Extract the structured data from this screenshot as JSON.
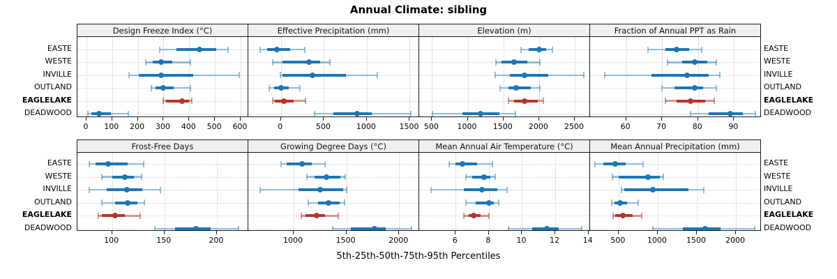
{
  "title": "Annual Climate: sibling",
  "footer": "5th-25th-50th-75th-95th Percentiles",
  "stations": [
    "EASTE",
    "WESTE",
    "INVILLE",
    "OUTLAND",
    "EAGLELAKE",
    "DEADWOOD"
  ],
  "highlight_station": "EAGLELAKE",
  "colors": {
    "series": "#1d76b4",
    "series_light": "rgba(29,118,180,0.45)",
    "highlight": "#b5342d",
    "highlight_light": "rgba(181,52,45,0.5)",
    "strip_bg": "#f0f0f0",
    "panel_bg": "#ffffff",
    "grid": "#cccccc",
    "frame": "#1a1a1a"
  },
  "chart_data": {
    "type": "dot-whisker",
    "layout": {
      "rows": 2,
      "cols": 4,
      "grid": true,
      "row_labels_left": true,
      "row_labels_right": true
    },
    "percentiles": [
      5,
      25,
      50,
      75,
      95
    ],
    "categories": [
      "EASTE",
      "WESTE",
      "INVILLE",
      "OUTLAND",
      "EAGLELAKE",
      "DEADWOOD"
    ],
    "highlight_index": 4,
    "panels": [
      {
        "title": "Design Freeze Index (°C)",
        "row": 0,
        "col": 0,
        "xlim": [
          -35,
          630
        ],
        "ticks": [
          0,
          100,
          200,
          300,
          400,
          500,
          600
        ],
        "values": [
          [
            285,
            350,
            440,
            505,
            550
          ],
          [
            230,
            258,
            292,
            335,
            405
          ],
          [
            165,
            205,
            290,
            415,
            595
          ],
          [
            252,
            270,
            298,
            340,
            405
          ],
          [
            298,
            310,
            372,
            400,
            410
          ],
          [
            5,
            18,
            48,
            95,
            162
          ]
        ]
      },
      {
        "title": "Effective Precipitation (mm)",
        "row": 0,
        "col": 1,
        "xlim": [
          -380,
          1610
        ],
        "ticks": [
          0,
          500,
          1000,
          1500
        ],
        "values": [
          [
            -245,
            -160,
            -45,
            105,
            275
          ],
          [
            -95,
            20,
            325,
            455,
            570
          ],
          [
            -10,
            15,
            365,
            755,
            1125
          ],
          [
            -140,
            -80,
            0,
            90,
            220
          ],
          [
            -95,
            -70,
            35,
            145,
            285
          ],
          [
            395,
            610,
            885,
            1055,
            1510
          ]
        ]
      },
      {
        "title": "Elevation (m)",
        "row": 0,
        "col": 2,
        "xlim": [
          320,
          2715
        ],
        "ticks": [
          500,
          1000,
          1500,
          2000,
          2500
        ],
        "values": [
          [
            1745,
            1855,
            2000,
            2095,
            2185
          ],
          [
            1400,
            1475,
            1650,
            1835,
            2015
          ],
          [
            1390,
            1590,
            1800,
            2130,
            2625
          ],
          [
            1455,
            1575,
            1680,
            1885,
            2015
          ],
          [
            1575,
            1645,
            1800,
            1985,
            2060
          ],
          [
            510,
            930,
            1180,
            1445,
            1670
          ]
        ]
      },
      {
        "title": "Fraction of Annual PPT as Rain",
        "row": 0,
        "col": 3,
        "xlim": [
          50,
          97.5
        ],
        "ticks": [
          60,
          70,
          80,
          90
        ],
        "values": [
          [
            66,
            71,
            74,
            77.5,
            81
          ],
          [
            71.5,
            75.5,
            79,
            82.5,
            85
          ],
          [
            54,
            67,
            77,
            83,
            86
          ],
          [
            70,
            73.5,
            79,
            81.5,
            85
          ],
          [
            71,
            74,
            78,
            82,
            84.5
          ],
          [
            78,
            83,
            89,
            92.5,
            96
          ]
        ]
      },
      {
        "title": "Frost-Free Days",
        "row": 1,
        "col": 0,
        "xlim": [
          67,
          230
        ],
        "ticks": [
          100,
          150,
          200
        ],
        "values": [
          [
            78,
            84,
            96,
            115,
            130
          ],
          [
            90,
            100,
            112,
            121,
            128
          ],
          [
            78,
            95,
            114,
            129,
            146
          ],
          [
            90,
            103,
            115,
            124,
            131
          ],
          [
            87,
            90,
            103,
            112,
            127
          ],
          [
            141,
            160,
            180,
            194,
            221
          ]
        ]
      },
      {
        "title": "Growing Degree Days (°C)",
        "row": 1,
        "col": 1,
        "xlim": [
          570,
          2190
        ],
        "ticks": [
          1000,
          1500,
          2000
        ],
        "values": [
          [
            880,
            935,
            1080,
            1175,
            1295
          ],
          [
            1125,
            1200,
            1310,
            1445,
            1490
          ],
          [
            685,
            1045,
            1250,
            1470,
            1505
          ],
          [
            1140,
            1230,
            1330,
            1435,
            1480
          ],
          [
            1075,
            1110,
            1215,
            1295,
            1420
          ],
          [
            1370,
            1540,
            1770,
            1870,
            2120
          ]
        ]
      },
      {
        "title": "Mean Annual Air Temperature (°C)",
        "row": 1,
        "col": 2,
        "xlim": [
          3.8,
          14.1
        ],
        "ticks": [
          6,
          8,
          10,
          12,
          14
        ],
        "values": [
          [
            5.6,
            6.0,
            6.4,
            7.3,
            8.2
          ],
          [
            6.6,
            7.0,
            7.7,
            8.1,
            8.4
          ],
          [
            4.5,
            6.5,
            7.6,
            8.5,
            9.1
          ],
          [
            6.6,
            7.2,
            8.0,
            8.3,
            8.6
          ],
          [
            6.5,
            6.8,
            7.1,
            7.5,
            8.0
          ],
          [
            9.2,
            10.6,
            11.5,
            12.2,
            13.6
          ]
        ]
      },
      {
        "title": "Mean Annual Precipitation (mm)",
        "row": 1,
        "col": 3,
        "xlim": [
          135,
          2320
        ],
        "ticks": [
          500,
          1000,
          1500,
          2000
        ],
        "values": [
          [
            200,
            300,
            455,
            590,
            815
          ],
          [
            420,
            500,
            875,
            1030,
            1075
          ],
          [
            535,
            575,
            940,
            1395,
            1590
          ],
          [
            410,
            450,
            515,
            605,
            750
          ],
          [
            430,
            455,
            550,
            680,
            795
          ],
          [
            940,
            1320,
            1605,
            1800,
            2240
          ]
        ]
      }
    ]
  }
}
